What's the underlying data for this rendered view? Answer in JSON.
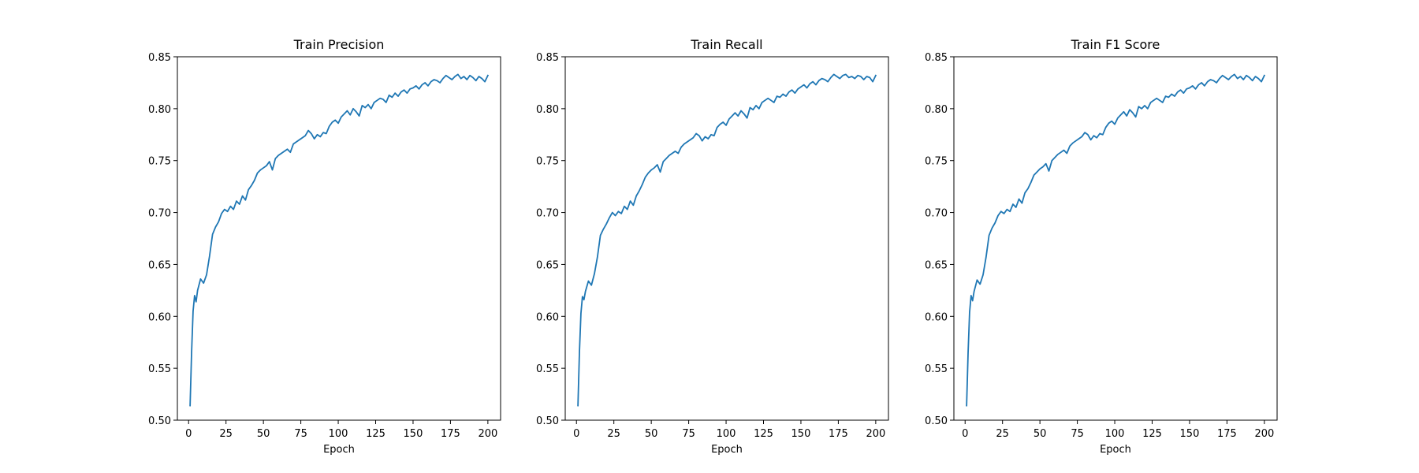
{
  "chart_data": [
    {
      "type": "line",
      "title": "Train Precision",
      "xlabel": "Epoch",
      "ylabel": "",
      "xlim": [
        -7.5,
        208.5
      ],
      "ylim": [
        0.5,
        0.85
      ],
      "xticks": [
        0,
        25,
        50,
        75,
        100,
        125,
        150,
        175,
        200
      ],
      "yticks": [
        0.5,
        0.55,
        0.6,
        0.65,
        0.7,
        0.75,
        0.8,
        0.85
      ],
      "ytick_labels": [
        "0.50",
        "0.55",
        "0.60",
        "0.65",
        "0.70",
        "0.75",
        "0.80",
        "0.85"
      ],
      "grid": false,
      "color": "#1f77b4",
      "series": [
        {
          "x": [
            1,
            2,
            3,
            4,
            5,
            6,
            8,
            10,
            12,
            14,
            16,
            18,
            20,
            22,
            24,
            26,
            28,
            30,
            32,
            34,
            36,
            38,
            40,
            42,
            44,
            46,
            48,
            50,
            52,
            54,
            56,
            58,
            60,
            62,
            64,
            66,
            68,
            70,
            72,
            74,
            76,
            78,
            80,
            82,
            84,
            86,
            88,
            90,
            92,
            94,
            96,
            98,
            100,
            102,
            104,
            106,
            108,
            110,
            112,
            114,
            116,
            118,
            120,
            122,
            124,
            126,
            128,
            130,
            132,
            134,
            136,
            138,
            140,
            142,
            144,
            146,
            148,
            150,
            152,
            154,
            156,
            158,
            160,
            162,
            164,
            166,
            168,
            170,
            172,
            174,
            176,
            178,
            180,
            182,
            184,
            186,
            188,
            190,
            192,
            194,
            196,
            198,
            200
          ],
          "y": [
            0.514,
            0.565,
            0.605,
            0.62,
            0.614,
            0.625,
            0.636,
            0.632,
            0.64,
            0.658,
            0.679,
            0.686,
            0.691,
            0.699,
            0.703,
            0.701,
            0.706,
            0.703,
            0.711,
            0.708,
            0.716,
            0.712,
            0.722,
            0.726,
            0.731,
            0.738,
            0.741,
            0.743,
            0.745,
            0.749,
            0.741,
            0.752,
            0.755,
            0.757,
            0.759,
            0.761,
            0.758,
            0.766,
            0.768,
            0.77,
            0.772,
            0.774,
            0.779,
            0.776,
            0.771,
            0.775,
            0.773,
            0.777,
            0.776,
            0.783,
            0.787,
            0.789,
            0.786,
            0.792,
            0.795,
            0.798,
            0.794,
            0.8,
            0.797,
            0.793,
            0.803,
            0.801,
            0.804,
            0.8,
            0.806,
            0.808,
            0.81,
            0.809,
            0.806,
            0.813,
            0.811,
            0.815,
            0.812,
            0.816,
            0.818,
            0.815,
            0.819,
            0.82,
            0.822,
            0.819,
            0.823,
            0.825,
            0.822,
            0.826,
            0.828,
            0.827,
            0.825,
            0.829,
            0.832,
            0.83,
            0.828,
            0.831,
            0.833,
            0.829,
            0.831,
            0.828,
            0.832,
            0.83,
            0.827,
            0.831,
            0.829,
            0.826,
            0.832
          ]
        }
      ]
    },
    {
      "type": "line",
      "title": "Train Recall",
      "xlabel": "Epoch",
      "ylabel": "",
      "xlim": [
        -7.5,
        208.5
      ],
      "ylim": [
        0.5,
        0.85
      ],
      "xticks": [
        0,
        25,
        50,
        75,
        100,
        125,
        150,
        175,
        200
      ],
      "yticks": [
        0.5,
        0.55,
        0.6,
        0.65,
        0.7,
        0.75,
        0.8,
        0.85
      ],
      "ytick_labels": [
        "0.50",
        "0.55",
        "0.60",
        "0.65",
        "0.70",
        "0.75",
        "0.80",
        "0.85"
      ],
      "grid": false,
      "color": "#1f77b4",
      "series": [
        {
          "x": [
            1,
            2,
            3,
            4,
            5,
            6,
            8,
            10,
            12,
            14,
            16,
            18,
            20,
            22,
            24,
            26,
            28,
            30,
            32,
            34,
            36,
            38,
            40,
            42,
            44,
            46,
            48,
            50,
            52,
            54,
            56,
            58,
            60,
            62,
            64,
            66,
            68,
            70,
            72,
            74,
            76,
            78,
            80,
            82,
            84,
            86,
            88,
            90,
            92,
            94,
            96,
            98,
            100,
            102,
            104,
            106,
            108,
            110,
            112,
            114,
            116,
            118,
            120,
            122,
            124,
            126,
            128,
            130,
            132,
            134,
            136,
            138,
            140,
            142,
            144,
            146,
            148,
            150,
            152,
            154,
            156,
            158,
            160,
            162,
            164,
            166,
            168,
            170,
            172,
            174,
            176,
            178,
            180,
            182,
            184,
            186,
            188,
            190,
            192,
            194,
            196,
            198,
            200
          ],
          "y": [
            0.514,
            0.566,
            0.603,
            0.619,
            0.616,
            0.624,
            0.634,
            0.63,
            0.641,
            0.657,
            0.678,
            0.684,
            0.689,
            0.695,
            0.7,
            0.697,
            0.701,
            0.699,
            0.706,
            0.703,
            0.711,
            0.707,
            0.716,
            0.721,
            0.727,
            0.734,
            0.738,
            0.741,
            0.743,
            0.746,
            0.739,
            0.749,
            0.752,
            0.755,
            0.757,
            0.759,
            0.757,
            0.763,
            0.766,
            0.768,
            0.77,
            0.772,
            0.776,
            0.774,
            0.769,
            0.773,
            0.771,
            0.775,
            0.774,
            0.782,
            0.785,
            0.787,
            0.784,
            0.79,
            0.793,
            0.796,
            0.793,
            0.798,
            0.795,
            0.791,
            0.801,
            0.799,
            0.803,
            0.8,
            0.806,
            0.808,
            0.81,
            0.808,
            0.806,
            0.812,
            0.811,
            0.814,
            0.812,
            0.816,
            0.818,
            0.815,
            0.819,
            0.821,
            0.823,
            0.82,
            0.824,
            0.826,
            0.823,
            0.827,
            0.829,
            0.828,
            0.826,
            0.83,
            0.833,
            0.831,
            0.829,
            0.832,
            0.833,
            0.83,
            0.831,
            0.829,
            0.832,
            0.831,
            0.828,
            0.831,
            0.83,
            0.826,
            0.832
          ]
        }
      ]
    },
    {
      "type": "line",
      "title": "Train F1 Score",
      "xlabel": "Epoch",
      "ylabel": "",
      "xlim": [
        -7.5,
        208.5
      ],
      "ylim": [
        0.5,
        0.85
      ],
      "xticks": [
        0,
        25,
        50,
        75,
        100,
        125,
        150,
        175,
        200
      ],
      "yticks": [
        0.5,
        0.55,
        0.6,
        0.65,
        0.7,
        0.75,
        0.8,
        0.85
      ],
      "ytick_labels": [
        "0.50",
        "0.55",
        "0.60",
        "0.65",
        "0.70",
        "0.75",
        "0.80",
        "0.85"
      ],
      "grid": false,
      "color": "#1f77b4",
      "series": [
        {
          "x": [
            1,
            2,
            3,
            4,
            5,
            6,
            8,
            10,
            12,
            14,
            16,
            18,
            20,
            22,
            24,
            26,
            28,
            30,
            32,
            34,
            36,
            38,
            40,
            42,
            44,
            46,
            48,
            50,
            52,
            54,
            56,
            58,
            60,
            62,
            64,
            66,
            68,
            70,
            72,
            74,
            76,
            78,
            80,
            82,
            84,
            86,
            88,
            90,
            92,
            94,
            96,
            98,
            100,
            102,
            104,
            106,
            108,
            110,
            112,
            114,
            116,
            118,
            120,
            122,
            124,
            126,
            128,
            130,
            132,
            134,
            136,
            138,
            140,
            142,
            144,
            146,
            148,
            150,
            152,
            154,
            156,
            158,
            160,
            162,
            164,
            166,
            168,
            170,
            172,
            174,
            176,
            178,
            180,
            182,
            184,
            186,
            188,
            190,
            192,
            194,
            196,
            198,
            200
          ],
          "y": [
            0.514,
            0.565,
            0.604,
            0.62,
            0.615,
            0.624,
            0.635,
            0.631,
            0.64,
            0.657,
            0.678,
            0.685,
            0.69,
            0.697,
            0.701,
            0.699,
            0.703,
            0.701,
            0.708,
            0.705,
            0.713,
            0.709,
            0.719,
            0.723,
            0.729,
            0.736,
            0.739,
            0.742,
            0.744,
            0.747,
            0.74,
            0.75,
            0.753,
            0.756,
            0.758,
            0.76,
            0.757,
            0.764,
            0.767,
            0.769,
            0.771,
            0.773,
            0.777,
            0.775,
            0.77,
            0.774,
            0.772,
            0.776,
            0.775,
            0.782,
            0.786,
            0.788,
            0.785,
            0.791,
            0.794,
            0.797,
            0.793,
            0.799,
            0.796,
            0.792,
            0.802,
            0.8,
            0.803,
            0.8,
            0.806,
            0.808,
            0.81,
            0.808,
            0.806,
            0.812,
            0.811,
            0.814,
            0.812,
            0.816,
            0.818,
            0.815,
            0.819,
            0.82,
            0.822,
            0.819,
            0.823,
            0.825,
            0.822,
            0.826,
            0.828,
            0.827,
            0.825,
            0.829,
            0.832,
            0.83,
            0.828,
            0.831,
            0.833,
            0.829,
            0.831,
            0.828,
            0.832,
            0.83,
            0.827,
            0.831,
            0.829,
            0.826,
            0.832
          ]
        }
      ]
    }
  ]
}
